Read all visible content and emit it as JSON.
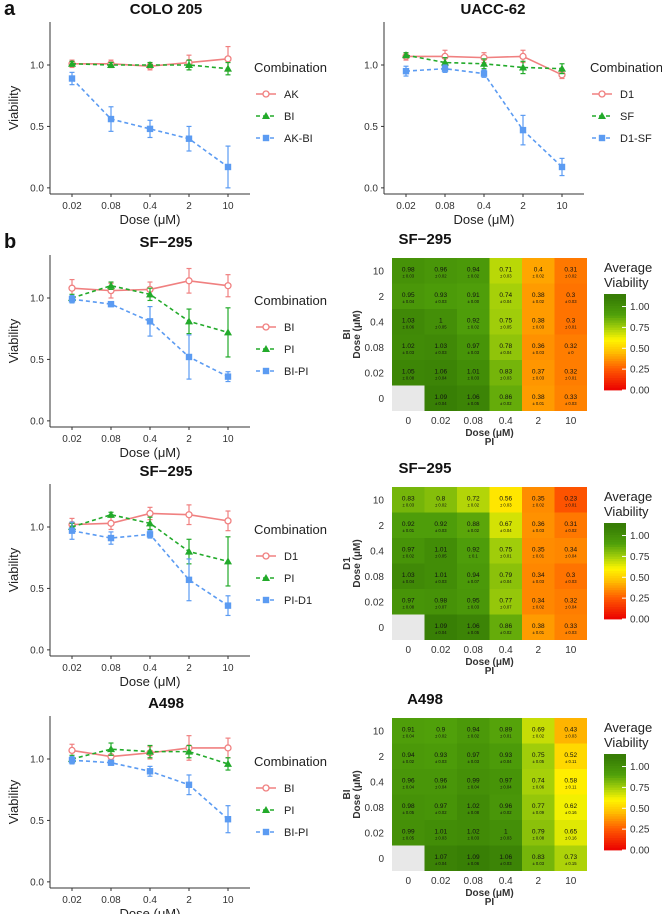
{
  "figure": {
    "panel_a": "a",
    "panel_b": "b"
  },
  "colors": {
    "red": "#f08080",
    "green": "#22aa2a",
    "blue": "#5b9bf2"
  },
  "chart_data": [
    {
      "type": "line",
      "title": "COLO 205",
      "xlabel": "Dose (μM)",
      "ylabel": "Viability",
      "x": [
        "0.02",
        "0.08",
        "0.4",
        "2",
        "10"
      ],
      "yticks": [
        "0.0",
        "0.5",
        "1.0"
      ],
      "ylim": [
        -0.05,
        1.35
      ],
      "legend_title": "Combination",
      "series": [
        {
          "name": "AK",
          "color": "#f08080",
          "marker": "circle-open",
          "dash": false,
          "values": [
            1.01,
            1.01,
            0.99,
            1.02,
            1.05
          ],
          "err": [
            0.03,
            0.03,
            0.03,
            0.06,
            0.1
          ]
        },
        {
          "name": "BI",
          "color": "#22aa2a",
          "marker": "triangle",
          "dash": true,
          "values": [
            1.01,
            1.0,
            1.0,
            1.0,
            0.97
          ],
          "err": [
            0.02,
            0.02,
            0.02,
            0.04,
            0.05
          ]
        },
        {
          "name": "AK-BI",
          "color": "#5b9bf2",
          "marker": "square",
          "dash": true,
          "values": [
            0.89,
            0.56,
            0.48,
            0.4,
            0.17
          ],
          "err": [
            0.05,
            0.1,
            0.07,
            0.1,
            0.17
          ]
        }
      ]
    },
    {
      "type": "line",
      "title": "UACC-62",
      "xlabel": "Dose (μM)",
      "ylabel": "",
      "x": [
        "0.02",
        "0.08",
        "0.4",
        "2",
        "10"
      ],
      "yticks": [
        "0.0",
        "0.5",
        "1.0"
      ],
      "ylim": [
        -0.05,
        1.35
      ],
      "legend_title": "Combination",
      "series": [
        {
          "name": "D1",
          "color": "#f08080",
          "marker": "circle-open",
          "dash": false,
          "values": [
            1.07,
            1.07,
            1.06,
            1.07,
            0.92
          ],
          "err": [
            0.03,
            0.05,
            0.04,
            0.05,
            0.03
          ]
        },
        {
          "name": "SF",
          "color": "#22aa2a",
          "marker": "triangle",
          "dash": true,
          "values": [
            1.08,
            1.02,
            1.01,
            0.98,
            0.97
          ],
          "err": [
            0.02,
            0.04,
            0.04,
            0.05,
            0.04
          ]
        },
        {
          "name": "D1-SF",
          "color": "#5b9bf2",
          "marker": "square",
          "dash": true,
          "values": [
            0.95,
            0.97,
            0.93,
            0.47,
            0.17
          ],
          "err": [
            0.04,
            0.03,
            0.03,
            0.12,
            0.07
          ]
        }
      ]
    },
    {
      "type": "line",
      "title": "SF−295",
      "xlabel": "Dose (μM)",
      "ylabel": "Viability",
      "x": [
        "0.02",
        "0.08",
        "0.4",
        "2",
        "10"
      ],
      "yticks": [
        "0.0",
        "0.5",
        "1.0"
      ],
      "ylim": [
        -0.05,
        1.35
      ],
      "legend_title": "Combination",
      "series": [
        {
          "name": "BI",
          "color": "#f08080",
          "marker": "circle-open",
          "dash": false,
          "values": [
            1.08,
            1.06,
            1.07,
            1.14,
            1.1
          ],
          "err": [
            0.07,
            0.06,
            0.06,
            0.1,
            0.09
          ]
        },
        {
          "name": "PI",
          "color": "#22aa2a",
          "marker": "triangle",
          "dash": true,
          "values": [
            1.0,
            1.1,
            1.03,
            0.81,
            0.72
          ],
          "err": [
            0.03,
            0.03,
            0.05,
            0.1,
            0.2
          ]
        },
        {
          "name": "BI-PI",
          "color": "#5b9bf2",
          "marker": "square",
          "dash": true,
          "values": [
            0.99,
            0.95,
            0.81,
            0.52,
            0.36
          ],
          "err": [
            0.03,
            0.02,
            0.12,
            0.18,
            0.04
          ]
        }
      ]
    },
    {
      "type": "heatmap",
      "title": "SF−295",
      "xlabel": "Dose (μM)",
      "xlabel2": "PI",
      "ylabel": "Dose (μM)",
      "ylabel2": "BI",
      "x": [
        "0",
        "0.02",
        "0.08",
        "0.4",
        "2",
        "10"
      ],
      "y": [
        "10",
        "2",
        "0.4",
        "0.08",
        "0.02",
        "0"
      ],
      "legend_title": [
        "Average",
        "Viability"
      ],
      "scale_ticks": [
        "1.00",
        "0.75",
        "0.50",
        "0.25",
        "0.00"
      ],
      "cells": [
        [
          {
            "v": "0.98",
            "s": "± 0.03"
          },
          {
            "v": "0.96",
            "s": "± 0.02"
          },
          {
            "v": "0.94",
            "s": "± 0.02"
          },
          {
            "v": "0.71",
            "s": "± 0.03"
          },
          {
            "v": "0.4",
            "s": "± 0.02"
          },
          {
            "v": "0.31",
            "s": "± 0.02"
          }
        ],
        [
          {
            "v": "0.95",
            "s": "± 0.04"
          },
          {
            "v": "0.93",
            "s": "± 0.03"
          },
          {
            "v": "0.91",
            "s": "± 0.00"
          },
          {
            "v": "0.74",
            "s": "± 0.04"
          },
          {
            "v": "0.38",
            "s": "± 0.02"
          },
          {
            "v": "0.3",
            "s": "± 0.03"
          }
        ],
        [
          {
            "v": "1.03",
            "s": "± 0.06"
          },
          {
            "v": "1",
            "s": "± 0.05"
          },
          {
            "v": "0.92",
            "s": "± 0.02"
          },
          {
            "v": "0.75",
            "s": "± 0.05"
          },
          {
            "v": "0.38",
            "s": "± 0.03"
          },
          {
            "v": "0.3",
            "s": "± 0.01"
          }
        ],
        [
          {
            "v": "1.02",
            "s": "± 0.03"
          },
          {
            "v": "1.03",
            "s": "± 0.03"
          },
          {
            "v": "0.97",
            "s": "± 0.03"
          },
          {
            "v": "0.78",
            "s": "± 0.04"
          },
          {
            "v": "0.36",
            "s": "± 0.03"
          },
          {
            "v": "0.32",
            "s": "± 0"
          }
        ],
        [
          {
            "v": "1.05",
            "s": "± 0.08"
          },
          {
            "v": "1.06",
            "s": "± 0.04"
          },
          {
            "v": "1.01",
            "s": "± 0.03"
          },
          {
            "v": "0.83",
            "s": "± 0.03"
          },
          {
            "v": "0.37",
            "s": "± 0.03"
          },
          {
            "v": "0.32",
            "s": "± 0.01"
          }
        ],
        [
          null,
          {
            "v": "1.09",
            "s": "± 0.04"
          },
          {
            "v": "1.06",
            "s": "± 0.05"
          },
          {
            "v": "0.86",
            "s": "± 0.02"
          },
          {
            "v": "0.38",
            "s": "± 0.01"
          },
          {
            "v": "0.33",
            "s": "± 0.03"
          }
        ]
      ]
    },
    {
      "type": "line",
      "title": "SF−295",
      "xlabel": "Dose (μM)",
      "ylabel": "Viability",
      "x": [
        "0.02",
        "0.08",
        "0.4",
        "2",
        "10"
      ],
      "yticks": [
        "0.0",
        "0.5",
        "1.0"
      ],
      "ylim": [
        -0.05,
        1.35
      ],
      "legend_title": "Combination",
      "series": [
        {
          "name": "D1",
          "color": "#f08080",
          "marker": "circle-open",
          "dash": false,
          "values": [
            1.02,
            1.03,
            1.11,
            1.1,
            1.05
          ],
          "err": [
            0.05,
            0.05,
            0.05,
            0.08,
            0.08
          ]
        },
        {
          "name": "PI",
          "color": "#22aa2a",
          "marker": "triangle",
          "dash": true,
          "values": [
            1.0,
            1.1,
            1.03,
            0.8,
            0.72
          ],
          "err": [
            0.03,
            0.02,
            0.05,
            0.1,
            0.2
          ]
        },
        {
          "name": "PI-D1",
          "color": "#5b9bf2",
          "marker": "square",
          "dash": true,
          "values": [
            0.97,
            0.91,
            0.94,
            0.57,
            0.36
          ],
          "err": [
            0.07,
            0.05,
            0.03,
            0.17,
            0.08
          ]
        }
      ]
    },
    {
      "type": "heatmap",
      "title": "SF−295",
      "xlabel": "Dose (μM)",
      "xlabel2": "PI",
      "ylabel": "Dose (μM)",
      "ylabel2": "D1",
      "x": [
        "0",
        "0.02",
        "0.08",
        "0.4",
        "2",
        "10"
      ],
      "y": [
        "10",
        "2",
        "0.4",
        "0.08",
        "0.02",
        "0"
      ],
      "legend_title": [
        "Average",
        "Viability"
      ],
      "scale_ticks": [
        "1.00",
        "0.75",
        "0.50",
        "0.25",
        "0.00"
      ],
      "cells": [
        [
          {
            "v": "0.83",
            "s": "± 0.03"
          },
          {
            "v": "0.8",
            "s": "± 0.02"
          },
          {
            "v": "0.72",
            "s": "± 0.02"
          },
          {
            "v": "0.56",
            "s": "± 0.03"
          },
          {
            "v": "0.35",
            "s": "± 0.02"
          },
          {
            "v": "0.23",
            "s": "± 0.01"
          }
        ],
        [
          {
            "v": "0.92",
            "s": "± 0.01"
          },
          {
            "v": "0.92",
            "s": "± 0.03"
          },
          {
            "v": "0.88",
            "s": "± 0.02"
          },
          {
            "v": "0.67",
            "s": "± 0.04"
          },
          {
            "v": "0.36",
            "s": "± 0.03"
          },
          {
            "v": "0.31",
            "s": "± 0.02"
          }
        ],
        [
          {
            "v": "0.97",
            "s": "± 0.02"
          },
          {
            "v": "1.01",
            "s": "± 0.05"
          },
          {
            "v": "0.92",
            "s": "± 0.1"
          },
          {
            "v": "0.75",
            "s": "± 0.01"
          },
          {
            "v": "0.35",
            "s": "± 0.01"
          },
          {
            "v": "0.34",
            "s": "± 0.04"
          }
        ],
        [
          {
            "v": "1.03",
            "s": "± 0.04"
          },
          {
            "v": "1.01",
            "s": "± 0.03"
          },
          {
            "v": "0.94",
            "s": "± 0.07"
          },
          {
            "v": "0.79",
            "s": "± 0.04"
          },
          {
            "v": "0.34",
            "s": "± 0.03"
          },
          {
            "v": "0.3",
            "s": "± 0.03"
          }
        ],
        [
          {
            "v": "0.97",
            "s": "± 0.08"
          },
          {
            "v": "0.98",
            "s": "± 0.07"
          },
          {
            "v": "0.95",
            "s": "± 0.03"
          },
          {
            "v": "0.77",
            "s": "± 0.07"
          },
          {
            "v": "0.34",
            "s": "± 0.02"
          },
          {
            "v": "0.32",
            "s": "± 0.04"
          }
        ],
        [
          null,
          {
            "v": "1.09",
            "s": "± 0.04"
          },
          {
            "v": "1.06",
            "s": "± 0.05"
          },
          {
            "v": "0.86",
            "s": "± 0.02"
          },
          {
            "v": "0.38",
            "s": "± 0.01"
          },
          {
            "v": "0.33",
            "s": "± 0.03"
          }
        ]
      ]
    },
    {
      "type": "line",
      "title": "A498",
      "xlabel": "Dose (μM)",
      "ylabel": "Viability",
      "x": [
        "0.02",
        "0.08",
        "0.4",
        "2",
        "10"
      ],
      "yticks": [
        "0.0",
        "0.5",
        "1.0"
      ],
      "ylim": [
        -0.05,
        1.35
      ],
      "legend_title": "Combination",
      "series": [
        {
          "name": "BI",
          "color": "#f08080",
          "marker": "circle-open",
          "dash": false,
          "values": [
            1.07,
            1.02,
            1.05,
            1.09,
            1.09
          ],
          "err": [
            0.05,
            0.05,
            0.05,
            0.1,
            0.08
          ]
        },
        {
          "name": "PI",
          "color": "#22aa2a",
          "marker": "triangle",
          "dash": true,
          "values": [
            1.0,
            1.08,
            1.06,
            1.06,
            0.96
          ],
          "err": [
            0.03,
            0.05,
            0.05,
            0.05,
            0.05
          ]
        },
        {
          "name": "BI-PI",
          "color": "#5b9bf2",
          "marker": "square",
          "dash": true,
          "values": [
            0.99,
            0.97,
            0.9,
            0.79,
            0.51
          ],
          "err": [
            0.03,
            0.02,
            0.04,
            0.08,
            0.11
          ]
        }
      ]
    },
    {
      "type": "heatmap",
      "title": "A498",
      "xlabel": "Dose (μM)",
      "xlabel2": "PI",
      "ylabel": "Dose (μM)",
      "ylabel2": "BI",
      "x": [
        "0",
        "0.02",
        "0.08",
        "0.4",
        "2",
        "10"
      ],
      "y": [
        "10",
        "2",
        "0.4",
        "0.08",
        "0.02",
        "0"
      ],
      "legend_title": [
        "Average",
        "Viability"
      ],
      "scale_ticks": [
        "1.00",
        "0.75",
        "0.50",
        "0.25",
        "0.00"
      ],
      "cells": [
        [
          {
            "v": "0.91",
            "s": "± 0.04"
          },
          {
            "v": "0.9",
            "s": "± 0.02"
          },
          {
            "v": "0.94",
            "s": "± 0.02"
          },
          {
            "v": "0.89",
            "s": "± 0.01"
          },
          {
            "v": "0.69",
            "s": "± 0.02"
          },
          {
            "v": "0.43",
            "s": "± 0.03"
          }
        ],
        [
          {
            "v": "0.94",
            "s": "± 0.02"
          },
          {
            "v": "0.93",
            "s": "± 0.03"
          },
          {
            "v": "0.97",
            "s": "± 0.03"
          },
          {
            "v": "0.93",
            "s": "± 0.04"
          },
          {
            "v": "0.75",
            "s": "± 0.05"
          },
          {
            "v": "0.52",
            "s": "± 0.11"
          }
        ],
        [
          {
            "v": "0.96",
            "s": "± 0.04"
          },
          {
            "v": "0.96",
            "s": "± 0.04"
          },
          {
            "v": "0.99",
            "s": "± 0.04"
          },
          {
            "v": "0.97",
            "s": "± 0.04"
          },
          {
            "v": "0.74",
            "s": "± 0.06"
          },
          {
            "v": "0.58",
            "s": "± 0.11"
          }
        ],
        [
          {
            "v": "0.98",
            "s": "± 0.05"
          },
          {
            "v": "0.97",
            "s": "± 0.02"
          },
          {
            "v": "1.02",
            "s": "± 0.08"
          },
          {
            "v": "0.96",
            "s": "± 0.02"
          },
          {
            "v": "0.77",
            "s": "± 0.09"
          },
          {
            "v": "0.62",
            "s": "± 0.16"
          }
        ],
        [
          {
            "v": "0.99",
            "s": "± 0.05"
          },
          {
            "v": "1.01",
            "s": "± 0.03"
          },
          {
            "v": "1.02",
            "s": "± 0.03"
          },
          {
            "v": "1",
            "s": "± 0.03"
          },
          {
            "v": "0.79",
            "s": "± 0.08"
          },
          {
            "v": "0.65",
            "s": "± 0.16"
          }
        ],
        [
          null,
          {
            "v": "1.07",
            "s": "± 0.04"
          },
          {
            "v": "1.09",
            "s": "± 0.06"
          },
          {
            "v": "1.06",
            "s": "± 0.03"
          },
          {
            "v": "0.83",
            "s": "± 0.03"
          },
          {
            "v": "0.73",
            "s": "± 0.15"
          }
        ]
      ]
    }
  ]
}
